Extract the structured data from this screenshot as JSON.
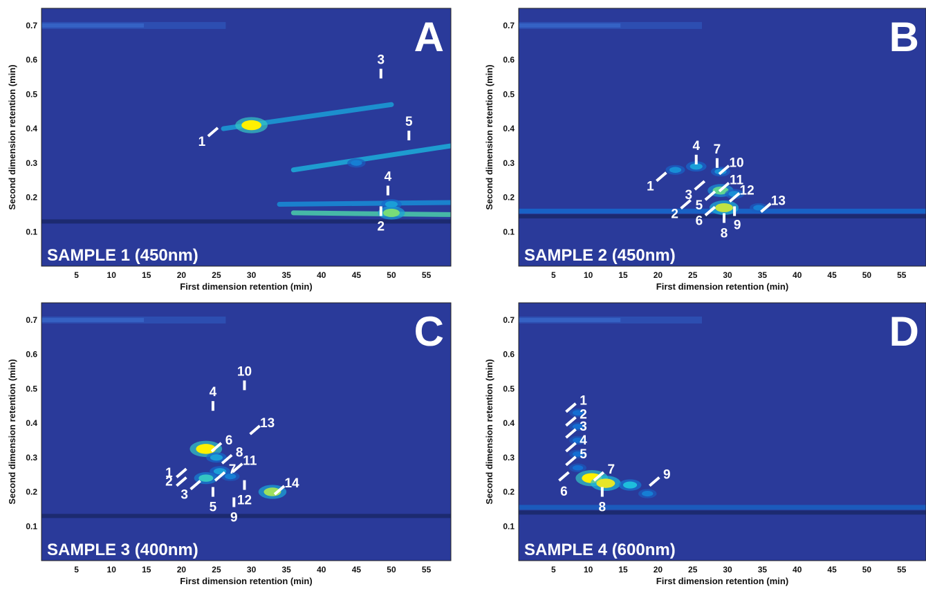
{
  "chart_data": [
    {
      "type": "heatmap",
      "panel_letter": "A",
      "sample_label": "SAMPLE 1 (450nm)",
      "xlabel": "First dimension retention (min)",
      "ylabel": "Second dimension retention (min)",
      "xlim": [
        0,
        58.5
      ],
      "ylim": [
        0,
        0.75
      ],
      "xticks": [
        "5",
        "10",
        "15",
        "20",
        "25",
        "30",
        "35",
        "40",
        "45",
        "50",
        "55"
      ],
      "yticks": [
        "0.1",
        "0.2",
        "0.3",
        "0.4",
        "0.5",
        "0.6",
        "0.7"
      ],
      "baseline_band_y": 0.13,
      "top_band_y": 0.7,
      "peaks": [
        {
          "x": 30,
          "y": 0.41,
          "intensity": 1.0
        },
        {
          "x": 45,
          "y": 0.3,
          "intensity": 0.35
        },
        {
          "x": 50,
          "y": 0.18,
          "intensity": 0.45
        },
        {
          "x": 50,
          "y": 0.155,
          "intensity": 0.75
        }
      ],
      "streaks": [
        {
          "x0": 26,
          "y0": 0.4,
          "x1": 50,
          "y1": 0.47,
          "intensity": 0.45
        },
        {
          "x0": 36,
          "y0": 0.28,
          "x1": 58.5,
          "y1": 0.35,
          "intensity": 0.5
        },
        {
          "x0": 34,
          "y0": 0.18,
          "x1": 58.5,
          "y1": 0.185,
          "intensity": 0.4
        },
        {
          "x0": 36,
          "y0": 0.155,
          "x1": 58.5,
          "y1": 0.15,
          "intensity": 0.65
        }
      ],
      "annotations": [
        {
          "text": "1",
          "x": 24.5,
          "y": 0.39,
          "mark": "diag",
          "label_pos": "below-left"
        },
        {
          "text": "2",
          "x": 48.5,
          "y": 0.16,
          "mark": "vert",
          "label_pos": "below"
        },
        {
          "text": "3",
          "x": 48.5,
          "y": 0.56,
          "mark": "vert",
          "label_pos": "above"
        },
        {
          "text": "4",
          "x": 49.5,
          "y": 0.22,
          "mark": "vert",
          "label_pos": "above"
        },
        {
          "text": "5",
          "x": 52.5,
          "y": 0.38,
          "mark": "vert",
          "label_pos": "above"
        }
      ]
    },
    {
      "type": "heatmap",
      "panel_letter": "B",
      "sample_label": "SAMPLE 2 (450nm)",
      "xlabel": "First dimension retention (min)",
      "ylabel": "Second dimension retention (min)",
      "xlim": [
        0,
        58.5
      ],
      "ylim": [
        0,
        0.75
      ],
      "xticks": [
        "5",
        "10",
        "15",
        "20",
        "25",
        "30",
        "35",
        "40",
        "45",
        "50",
        "55"
      ],
      "yticks": [
        "0.1",
        "0.2",
        "0.3",
        "0.4",
        "0.5",
        "0.6",
        "0.7"
      ],
      "baseline_band_y": 0.145,
      "top_band_y": 0.7,
      "peaks": [
        {
          "x": 22.5,
          "y": 0.28,
          "intensity": 0.4
        },
        {
          "x": 25.5,
          "y": 0.29,
          "intensity": 0.45
        },
        {
          "x": 29,
          "y": 0.275,
          "intensity": 0.4
        },
        {
          "x": 29,
          "y": 0.22,
          "intensity": 0.7
        },
        {
          "x": 29.5,
          "y": 0.17,
          "intensity": 0.85
        },
        {
          "x": 31,
          "y": 0.21,
          "intensity": 0.4
        },
        {
          "x": 34.5,
          "y": 0.17,
          "intensity": 0.35
        }
      ],
      "streaks": [
        {
          "x0": 0,
          "y0": 0.16,
          "x1": 58.5,
          "y1": 0.16,
          "intensity": 0.28
        }
      ],
      "annotations": [
        {
          "text": "1",
          "x": 20.5,
          "y": 0.26,
          "mark": "diag",
          "label_pos": "below-left"
        },
        {
          "text": "2",
          "x": 24,
          "y": 0.18,
          "mark": "diag",
          "label_pos": "below-left"
        },
        {
          "text": "3",
          "x": 26,
          "y": 0.235,
          "mark": "diag",
          "label_pos": "below-left"
        },
        {
          "text": "4",
          "x": 25.5,
          "y": 0.31,
          "mark": "vert",
          "label_pos": "above"
        },
        {
          "text": "5",
          "x": 27.5,
          "y": 0.205,
          "mark": "diag",
          "label_pos": "below-left"
        },
        {
          "text": "6",
          "x": 27.5,
          "y": 0.16,
          "mark": "diag",
          "label_pos": "below-left"
        },
        {
          "text": "7",
          "x": 28.5,
          "y": 0.3,
          "mark": "vert",
          "label_pos": "above"
        },
        {
          "text": "8",
          "x": 29.5,
          "y": 0.14,
          "mark": "vert",
          "label_pos": "below"
        },
        {
          "text": "9",
          "x": 31,
          "y": 0.16,
          "mark": "vert",
          "label_pos": "below-right"
        },
        {
          "text": "10",
          "x": 29.5,
          "y": 0.28,
          "mark": "diag-r",
          "label_pos": "above-right"
        },
        {
          "text": "11",
          "x": 29.5,
          "y": 0.23,
          "mark": "diag-r",
          "label_pos": "above-right"
        },
        {
          "text": "12",
          "x": 31,
          "y": 0.2,
          "mark": "diag-r",
          "label_pos": "above-right"
        },
        {
          "text": "13",
          "x": 35.5,
          "y": 0.17,
          "mark": "diag-r",
          "label_pos": "above-right"
        }
      ]
    },
    {
      "type": "heatmap",
      "panel_letter": "C",
      "sample_label": "SAMPLE 3 (400nm)",
      "xlabel": "First dimension retention (min)",
      "ylabel": "Second dimension retention (min)",
      "xlim": [
        0,
        58.5
      ],
      "ylim": [
        0,
        0.75
      ],
      "xticks": [
        "5",
        "10",
        "15",
        "20",
        "25",
        "30",
        "35",
        "40",
        "45",
        "50",
        "55"
      ],
      "yticks": [
        "0.1",
        "0.2",
        "0.3",
        "0.4",
        "0.5",
        "0.6",
        "0.7"
      ],
      "baseline_band_y": 0.13,
      "top_band_y": 0.7,
      "peaks": [
        {
          "x": 23.5,
          "y": 0.325,
          "intensity": 1.0
        },
        {
          "x": 25,
          "y": 0.3,
          "intensity": 0.45
        },
        {
          "x": 23.5,
          "y": 0.24,
          "intensity": 0.6
        },
        {
          "x": 25.5,
          "y": 0.26,
          "intensity": 0.45
        },
        {
          "x": 27,
          "y": 0.245,
          "intensity": 0.35
        },
        {
          "x": 33,
          "y": 0.2,
          "intensity": 0.8
        }
      ],
      "streaks": [],
      "annotations": [
        {
          "text": "1",
          "x": 20,
          "y": 0.255,
          "mark": "diag",
          "label_pos": "left"
        },
        {
          "text": "2",
          "x": 20,
          "y": 0.23,
          "mark": "diag",
          "label_pos": "left"
        },
        {
          "text": "3",
          "x": 22,
          "y": 0.22,
          "mark": "diag",
          "label_pos": "below-left"
        },
        {
          "text": "4",
          "x": 24.5,
          "y": 0.45,
          "mark": "vert",
          "label_pos": "above"
        },
        {
          "text": "5",
          "x": 24.5,
          "y": 0.2,
          "mark": "vert",
          "label_pos": "below"
        },
        {
          "text": "6",
          "x": 25,
          "y": 0.33,
          "mark": "diag-r",
          "label_pos": "above-right"
        },
        {
          "text": "7",
          "x": 25.5,
          "y": 0.245,
          "mark": "diag-r",
          "label_pos": "above-right"
        },
        {
          "text": "8",
          "x": 26.5,
          "y": 0.295,
          "mark": "diag-r",
          "label_pos": "above-right"
        },
        {
          "text": "9",
          "x": 27.5,
          "y": 0.17,
          "mark": "vert",
          "label_pos": "below"
        },
        {
          "text": "10",
          "x": 29,
          "y": 0.51,
          "mark": "vert",
          "label_pos": "above"
        },
        {
          "text": "11",
          "x": 28,
          "y": 0.27,
          "mark": "diag-r",
          "label_pos": "above-right"
        },
        {
          "text": "12",
          "x": 29,
          "y": 0.22,
          "mark": "vert",
          "label_pos": "below"
        },
        {
          "text": "13",
          "x": 30.5,
          "y": 0.38,
          "mark": "diag-r",
          "label_pos": "above-right"
        },
        {
          "text": "14",
          "x": 34,
          "y": 0.205,
          "mark": "diag-r",
          "label_pos": "above-right"
        }
      ]
    },
    {
      "type": "heatmap",
      "panel_letter": "D",
      "sample_label": "SAMPLE 4 (600nm)",
      "xlabel": "First dimension retention (min)",
      "ylabel": "Second dimension retention (min)",
      "xlim": [
        0,
        58.5
      ],
      "ylim": [
        0,
        0.75
      ],
      "xticks": [
        "5",
        "10",
        "15",
        "20",
        "25",
        "30",
        "35",
        "40",
        "45",
        "50",
        "55"
      ],
      "yticks": [
        "0.1",
        "0.2",
        "0.3",
        "0.4",
        "0.5",
        "0.6",
        "0.7"
      ],
      "baseline_band_y": 0.14,
      "top_band_y": 0.7,
      "peaks": [
        {
          "x": 10.5,
          "y": 0.24,
          "intensity": 1.0
        },
        {
          "x": 12.5,
          "y": 0.225,
          "intensity": 0.9
        },
        {
          "x": 16,
          "y": 0.22,
          "intensity": 0.55
        },
        {
          "x": 18.5,
          "y": 0.195,
          "intensity": 0.35
        },
        {
          "x": 8.5,
          "y": 0.43,
          "intensity": 0.3
        },
        {
          "x": 8.5,
          "y": 0.39,
          "intensity": 0.3
        },
        {
          "x": 8.5,
          "y": 0.35,
          "intensity": 0.3
        },
        {
          "x": 8.5,
          "y": 0.31,
          "intensity": 0.3
        },
        {
          "x": 8.5,
          "y": 0.27,
          "intensity": 0.3
        }
      ],
      "streaks": [
        {
          "x0": 0,
          "y0": 0.155,
          "x1": 58.5,
          "y1": 0.155,
          "intensity": 0.22
        }
      ],
      "annotations": [
        {
          "text": "1",
          "x": 7.5,
          "y": 0.445,
          "mark": "diag-r",
          "label_pos": "above-right"
        },
        {
          "text": "2",
          "x": 7.5,
          "y": 0.405,
          "mark": "diag-r",
          "label_pos": "above-right"
        },
        {
          "text": "3",
          "x": 7.5,
          "y": 0.37,
          "mark": "diag-r",
          "label_pos": "above-right"
        },
        {
          "text": "4",
          "x": 7.5,
          "y": 0.33,
          "mark": "diag-r",
          "label_pos": "above-right"
        },
        {
          "text": "5",
          "x": 7.5,
          "y": 0.29,
          "mark": "diag-r",
          "label_pos": "above-right"
        },
        {
          "text": "6",
          "x": 6.5,
          "y": 0.245,
          "mark": "diag-r",
          "label_pos": "below"
        },
        {
          "text": "7",
          "x": 11.5,
          "y": 0.245,
          "mark": "diag-r",
          "label_pos": "above-right"
        },
        {
          "text": "8",
          "x": 12,
          "y": 0.2,
          "mark": "vert",
          "label_pos": "below"
        },
        {
          "text": "9",
          "x": 19.5,
          "y": 0.23,
          "mark": "diag-r",
          "label_pos": "above-right"
        }
      ]
    }
  ]
}
